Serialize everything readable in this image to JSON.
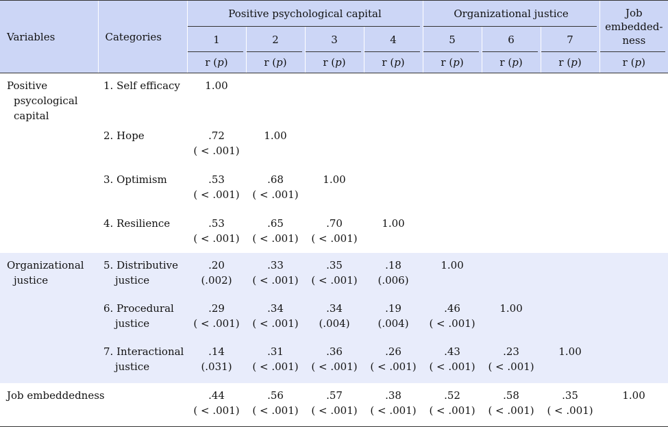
{
  "header": {
    "variables": "Variables",
    "categories": "Categories",
    "group_ppc": "Positive psychological capital",
    "group_oj": "Organizational justice",
    "job_line1": "Job",
    "job_line2": "embedded-",
    "job_line3": "ness",
    "numbers": [
      "1",
      "2",
      "3",
      "4",
      "5",
      "6",
      "7"
    ],
    "stat_r": "r (",
    "stat_p": "p",
    "stat_close": ")"
  },
  "rows": [
    {
      "var1": "Positive",
      "var2": "psycological",
      "var3": "capital",
      "cat1": "1. Self efficacy",
      "cat2": "",
      "cells": [
        [
          "1.00",
          ""
        ],
        [
          "",
          ""
        ],
        [
          "",
          ""
        ],
        [
          "",
          ""
        ],
        [
          "",
          ""
        ],
        [
          "",
          ""
        ],
        [
          "",
          ""
        ],
        [
          "",
          ""
        ]
      ]
    },
    {
      "var1": "",
      "var2": "",
      "var3": "",
      "cat1": "2. Hope",
      "cat2": "",
      "cells": [
        [
          ".72",
          "( < .001)"
        ],
        [
          "1.00",
          ""
        ],
        [
          "",
          ""
        ],
        [
          "",
          ""
        ],
        [
          "",
          ""
        ],
        [
          "",
          ""
        ],
        [
          "",
          ""
        ],
        [
          "",
          ""
        ]
      ]
    },
    {
      "var1": "",
      "var2": "",
      "var3": "",
      "cat1": "3. Optimism",
      "cat2": "",
      "cells": [
        [
          ".53",
          "( < .001)"
        ],
        [
          ".68",
          "( < .001)"
        ],
        [
          "1.00",
          ""
        ],
        [
          "",
          ""
        ],
        [
          "",
          ""
        ],
        [
          "",
          ""
        ],
        [
          "",
          ""
        ],
        [
          "",
          ""
        ]
      ]
    },
    {
      "var1": "",
      "var2": "",
      "var3": "",
      "cat1": "4. Resilience",
      "cat2": "",
      "cells": [
        [
          ".53",
          "( < .001)"
        ],
        [
          ".65",
          "( < .001)"
        ],
        [
          ".70",
          "( < .001)"
        ],
        [
          "1.00",
          ""
        ],
        [
          "",
          ""
        ],
        [
          "",
          ""
        ],
        [
          "",
          ""
        ],
        [
          "",
          ""
        ]
      ]
    },
    {
      "var1": "Organizational",
      "var2": "justice",
      "var3": "",
      "cat1": "5. Distributive",
      "cat2": "justice",
      "cells": [
        [
          ".20",
          "(.002)"
        ],
        [
          ".33",
          "( < .001)"
        ],
        [
          ".35",
          "( < .001)"
        ],
        [
          ".18",
          "(.006)"
        ],
        [
          "1.00",
          ""
        ],
        [
          "",
          ""
        ],
        [
          "",
          ""
        ],
        [
          "",
          ""
        ]
      ]
    },
    {
      "var1": "",
      "var2": "",
      "var3": "",
      "cat1": "6. Procedural",
      "cat2": "justice",
      "cells": [
        [
          ".29",
          "( < .001)"
        ],
        [
          ".34",
          "( < .001)"
        ],
        [
          ".34",
          "(.004)"
        ],
        [
          ".19",
          "(.004)"
        ],
        [
          ".46",
          "( < .001)"
        ],
        [
          "1.00",
          ""
        ],
        [
          "",
          ""
        ],
        [
          "",
          ""
        ]
      ]
    },
    {
      "var1": "",
      "var2": "",
      "var3": "",
      "cat1": "7. Interactional",
      "cat2": "justice",
      "cells": [
        [
          ".14",
          "(.031)"
        ],
        [
          ".31",
          "( < .001)"
        ],
        [
          ".36",
          "( < .001)"
        ],
        [
          ".26",
          "( < .001)"
        ],
        [
          ".43",
          "( < .001)"
        ],
        [
          ".23",
          "( < .001)"
        ],
        [
          "1.00",
          ""
        ],
        [
          "",
          ""
        ]
      ]
    },
    {
      "var1": "Job embeddedness",
      "var2": "",
      "var3": "",
      "cat1": "",
      "cat2": "",
      "cells": [
        [
          ".44",
          "( < .001)"
        ],
        [
          ".56",
          "( < .001)"
        ],
        [
          ".57",
          "( < .001)"
        ],
        [
          ".38",
          "( < .001)"
        ],
        [
          ".52",
          "( < .001)"
        ],
        [
          ".58",
          "( < .001)"
        ],
        [
          ".35",
          "( < .001)"
        ],
        [
          "1.00",
          ""
        ]
      ]
    }
  ]
}
